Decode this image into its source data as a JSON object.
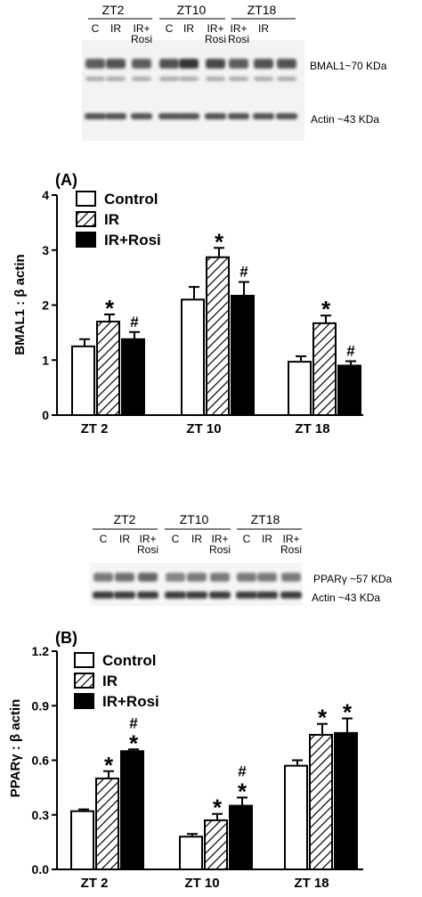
{
  "blot_a": {
    "groups": [
      "ZT2",
      "ZT10",
      "ZT18"
    ],
    "lanes": [
      [
        "C",
        "IR",
        "IR+|Rosi"
      ],
      [
        "C",
        "IR",
        "IR+|Rosi"
      ],
      [
        "IR+|Rosi",
        "IR",
        ""
      ]
    ],
    "bands": [
      "BMAL1~70 KDa",
      "Actin ~43 KDa"
    ]
  },
  "blot_b": {
    "groups": [
      "ZT2",
      "ZT10",
      "ZT18"
    ],
    "lanes": [
      [
        "C",
        "IR",
        "IR+|Rosi"
      ],
      [
        "C",
        "IR",
        "IR+|Rosi"
      ],
      [
        "C",
        "IR",
        "IR+|Rosi"
      ]
    ],
    "bands": [
      "PPARγ ~57 KDa",
      "Actin ~43 KDa"
    ]
  },
  "colors": {
    "ink": "#000000",
    "background": "#ffffff",
    "band": "#2b2b2b"
  },
  "chart_data": [
    {
      "type": "bar",
      "panel_label": "(A)",
      "ylabel": "BMAL1 : β actin",
      "ylim": [
        0,
        4
      ],
      "yticks": [
        "0",
        "1",
        "2",
        "3",
        "4"
      ],
      "categories": [
        "ZT 2",
        "ZT 10",
        "ZT  18"
      ],
      "series": [
        {
          "name": "Control",
          "fill": "white",
          "values": [
            1.25,
            2.1,
            0.97
          ],
          "errors": [
            0.13,
            0.23,
            0.1
          ],
          "marks": [
            "",
            "",
            ""
          ]
        },
        {
          "name": "IR",
          "fill": "hatch",
          "values": [
            1.7,
            2.87,
            1.67
          ],
          "errors": [
            0.13,
            0.17,
            0.14
          ],
          "marks": [
            "*",
            "*",
            "*"
          ]
        },
        {
          "name": "IR+Rosi",
          "fill": "black",
          "values": [
            1.38,
            2.17,
            0.9
          ],
          "errors": [
            0.13,
            0.25,
            0.08
          ],
          "marks": [
            "#",
            "#",
            "#"
          ]
        }
      ],
      "legend": "top-left",
      "grid": false
    },
    {
      "type": "bar",
      "panel_label": "(B)",
      "ylabel": "PPARγ : β actin",
      "ylim": [
        0,
        1.2
      ],
      "yticks": [
        "0.0",
        "0.3",
        "0.6",
        "0.9",
        "1.2"
      ],
      "categories": [
        "ZT 2",
        "ZT 10",
        "ZT  18"
      ],
      "series": [
        {
          "name": "Control",
          "fill": "white",
          "values": [
            0.32,
            0.18,
            0.57
          ],
          "errors": [
            0.01,
            0.015,
            0.03
          ],
          "marks": [
            "",
            "",
            ""
          ]
        },
        {
          "name": "IR",
          "fill": "hatch",
          "values": [
            0.5,
            0.27,
            0.74
          ],
          "errors": [
            0.04,
            0.035,
            0.06
          ],
          "marks": [
            "*",
            "*",
            "*"
          ]
        },
        {
          "name": "IR+Rosi",
          "fill": "black",
          "values": [
            0.65,
            0.35,
            0.75
          ],
          "errors": [
            0.01,
            0.045,
            0.08
          ],
          "marks": [
            "#|*",
            "#|*",
            "*"
          ]
        }
      ],
      "legend": "top-left",
      "grid": false
    }
  ]
}
